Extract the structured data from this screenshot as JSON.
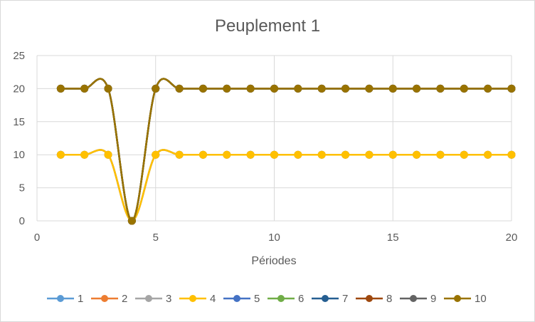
{
  "chart_data": {
    "type": "line",
    "title": "Peuplement 1",
    "xlabel": "Périodes",
    "ylabel": "",
    "xlim": [
      0,
      20
    ],
    "ylim": [
      0,
      25
    ],
    "xticks": [
      0,
      5,
      10,
      15,
      20
    ],
    "yticks": [
      0,
      5,
      10,
      15,
      20,
      25
    ],
    "grid": true,
    "legend_position": "bottom",
    "x": [
      1,
      2,
      3,
      4,
      5,
      6,
      7,
      8,
      9,
      10,
      11,
      12,
      13,
      14,
      15,
      16,
      17,
      18,
      19,
      20
    ],
    "series": [
      {
        "name": "1",
        "color": "#5b9bd5",
        "values": [
          10,
          10,
          10,
          0,
          10,
          10,
          10,
          10,
          10,
          10,
          10,
          10,
          10,
          10,
          10,
          10,
          10,
          10,
          10,
          10
        ]
      },
      {
        "name": "2",
        "color": "#ed7d31",
        "values": [
          10,
          10,
          10,
          0,
          10,
          10,
          10,
          10,
          10,
          10,
          10,
          10,
          10,
          10,
          10,
          10,
          10,
          10,
          10,
          10
        ]
      },
      {
        "name": "3",
        "color": "#a5a5a5",
        "values": [
          10,
          10,
          10,
          0,
          10,
          10,
          10,
          10,
          10,
          10,
          10,
          10,
          10,
          10,
          10,
          10,
          10,
          10,
          10,
          10
        ]
      },
      {
        "name": "4",
        "color": "#ffc000",
        "values": [
          10,
          10,
          10,
          0,
          10,
          10,
          10,
          10,
          10,
          10,
          10,
          10,
          10,
          10,
          10,
          10,
          10,
          10,
          10,
          10
        ]
      },
      {
        "name": "5",
        "color": "#4472c4",
        "values": [
          20,
          20,
          20,
          0,
          20,
          20,
          20,
          20,
          20,
          20,
          20,
          20,
          20,
          20,
          20,
          20,
          20,
          20,
          20,
          20
        ]
      },
      {
        "name": "6",
        "color": "#70ad47",
        "values": [
          20,
          20,
          20,
          0,
          20,
          20,
          20,
          20,
          20,
          20,
          20,
          20,
          20,
          20,
          20,
          20,
          20,
          20,
          20,
          20
        ]
      },
      {
        "name": "7",
        "color": "#255e91",
        "values": [
          20,
          20,
          20,
          0,
          20,
          20,
          20,
          20,
          20,
          20,
          20,
          20,
          20,
          20,
          20,
          20,
          20,
          20,
          20,
          20
        ]
      },
      {
        "name": "8",
        "color": "#9e480e",
        "values": [
          20,
          20,
          20,
          0,
          20,
          20,
          20,
          20,
          20,
          20,
          20,
          20,
          20,
          20,
          20,
          20,
          20,
          20,
          20,
          20
        ]
      },
      {
        "name": "9",
        "color": "#636363",
        "values": [
          20,
          20,
          20,
          0,
          20,
          20,
          20,
          20,
          20,
          20,
          20,
          20,
          20,
          20,
          20,
          20,
          20,
          20,
          20,
          20
        ]
      },
      {
        "name": "10",
        "color": "#997300",
        "values": [
          20,
          20,
          20,
          0,
          20,
          20,
          20,
          20,
          20,
          20,
          20,
          20,
          20,
          20,
          20,
          20,
          20,
          20,
          20,
          20
        ]
      }
    ]
  }
}
